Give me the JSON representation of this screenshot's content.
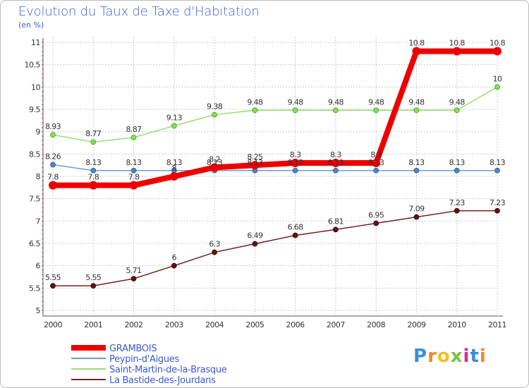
{
  "page": {
    "title": "Evolution du Taux de Taxe d'Habitation",
    "subtitle": "(en %)",
    "logo": {
      "text": "Proxiti",
      "letter_colors": [
        "#3a8de0",
        "#f08a24",
        "#f0c020",
        "#7cc04a",
        "#e02a8a",
        "#3a8de0",
        "#f08a24"
      ]
    }
  },
  "chart_data": {
    "type": "line",
    "title": "Evolution du Taux de Taxe d'Habitation",
    "subtitle": "(en %)",
    "xlabel": "",
    "ylabel": "",
    "ylim": [
      5,
      11
    ],
    "grid": true,
    "y_ticks": [
      {
        "value": 5,
        "label": "5"
      },
      {
        "value": 5.5,
        "label": "5.5"
      },
      {
        "value": 6,
        "label": "6"
      },
      {
        "value": 6.5,
        "label": "6.5"
      },
      {
        "value": 7,
        "label": "7"
      },
      {
        "value": 7.5,
        "label": "7.5"
      },
      {
        "value": 8,
        "label": "8"
      },
      {
        "value": 8.5,
        "label": "8.5"
      },
      {
        "value": 9,
        "label": "9"
      },
      {
        "value": 9.5,
        "label": "9.5"
      },
      {
        "value": 10,
        "label": "10"
      },
      {
        "value": 10.5,
        "label": "10.5"
      },
      {
        "value": 11,
        "label": "11"
      }
    ],
    "categories": [
      "2000",
      "2001",
      "2002",
      "2003",
      "2004",
      "2005",
      "2006",
      "2007",
      "2008",
      "2009",
      "2010",
      "2011"
    ],
    "series": [
      {
        "name": "GRAMBOIS",
        "color": "#ee0000",
        "values": [
          7.8,
          7.8,
          7.8,
          8.0,
          8.2,
          8.25,
          8.3,
          8.3,
          8.3,
          10.8,
          10.8,
          10.8
        ],
        "labels": [
          "7.8",
          "7.8",
          "7.8",
          "8",
          "8.2",
          "8.25",
          "8.3",
          "8.3",
          "8.3",
          "10.8",
          "10.8",
          "10.8"
        ]
      },
      {
        "name": "Peypin-d'Aigues",
        "color": "#6f9dc9",
        "values": [
          8.26,
          8.13,
          8.13,
          8.13,
          8.13,
          8.13,
          8.13,
          8.13,
          8.13,
          8.13,
          8.13,
          8.13
        ],
        "labels": [
          "8.26",
          "8.13",
          "8.13",
          "8.13",
          "8.13",
          "8.13",
          "8.13",
          "8.13",
          "8.13",
          "8.13",
          "8.13",
          "8.13"
        ]
      },
      {
        "name": "Saint-Martin-de-la-Brasque",
        "color": "#99dd77",
        "values": [
          8.93,
          8.77,
          8.87,
          9.13,
          9.38,
          9.48,
          9.48,
          9.48,
          9.48,
          9.48,
          9.48,
          10.0
        ],
        "labels": [
          "8.93",
          "8.77",
          "8.87",
          "9.13",
          "9.38",
          "9.48",
          "9.48",
          "9.48",
          "9.48",
          "9.48",
          "9.48",
          "10"
        ]
      },
      {
        "name": "La Bastide-des-Jourdans",
        "color": "#772222",
        "values": [
          5.55,
          5.55,
          5.71,
          6.0,
          6.3,
          6.49,
          6.68,
          6.81,
          6.95,
          7.09,
          7.23,
          7.23
        ],
        "labels": [
          "5.55",
          "5.55",
          "5.71",
          "6",
          "6.3",
          "6.49",
          "6.68",
          "6.81",
          "6.95",
          "7.09",
          "7.23",
          "7.23"
        ]
      }
    ]
  }
}
